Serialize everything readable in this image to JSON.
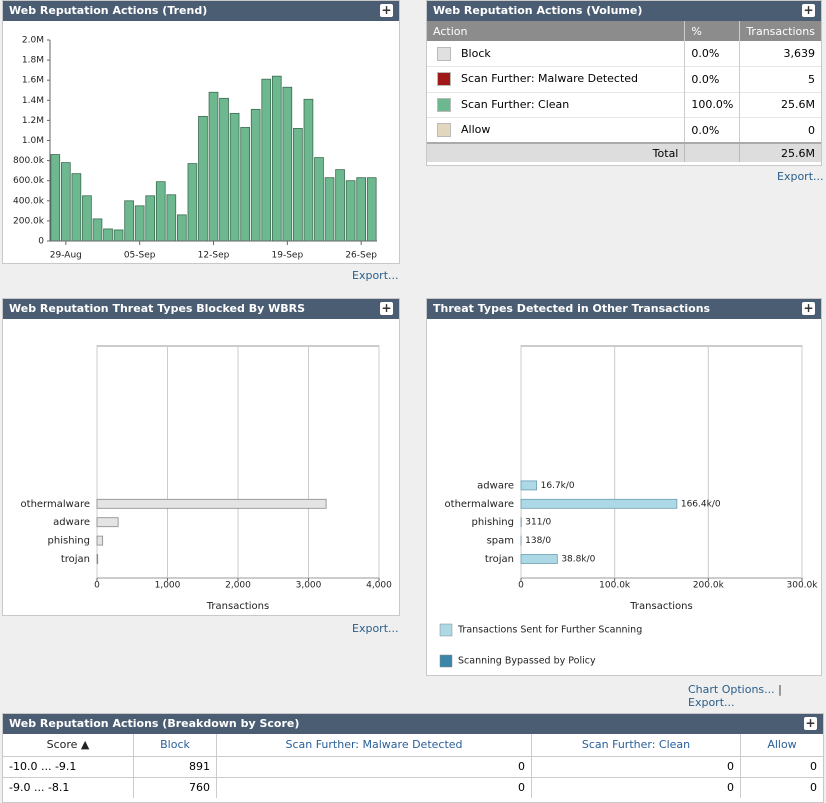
{
  "chart_data": [
    {
      "type": "bar",
      "title": "Web Reputation Actions (Trend)",
      "categories": [
        null,
        "29-Aug",
        null,
        null,
        null,
        null,
        null,
        null,
        "05-Sep",
        null,
        null,
        null,
        null,
        null,
        null,
        "12-Sep",
        null,
        null,
        null,
        null,
        null,
        null,
        "19-Sep",
        null,
        null,
        null,
        null,
        null,
        null,
        "26-Sep",
        null
      ],
      "values": [
        860000,
        780000,
        670000,
        450000,
        220000,
        120000,
        110000,
        400000,
        350000,
        450000,
        590000,
        460000,
        260000,
        770000,
        1240000,
        1480000,
        1420000,
        1270000,
        1130000,
        1310000,
        1610000,
        1640000,
        1530000,
        1120000,
        1410000,
        830000,
        630000,
        710000,
        600000,
        630000,
        630000
      ],
      "color": "#6db88f",
      "ylim": [
        0,
        2000000
      ],
      "yticks": [
        0,
        {
          "value": 200000,
          "label": "200.0k"
        },
        {
          "value": 400000,
          "label": "400.0k"
        },
        {
          "value": 600000,
          "label": "600.0k"
        },
        {
          "value": 800000,
          "label": "800.0k"
        },
        {
          "value": 1000000,
          "label": "1.0M"
        },
        {
          "value": 1200000,
          "label": "1.2M"
        },
        {
          "value": 1400000,
          "label": "1.4M"
        },
        {
          "value": 1600000,
          "label": "1.6M"
        },
        {
          "value": 1800000,
          "label": "1.8M"
        },
        {
          "value": 2000000,
          "label": "2.0M"
        }
      ],
      "grid": false,
      "link": "Export..."
    },
    {
      "type": "hbar",
      "title": "Web Reputation Threat Types Blocked By WBRS",
      "categories": [
        "othermalware",
        "adware",
        "phishing",
        "trojan"
      ],
      "values": [
        3250,
        300,
        80,
        10
      ],
      "color": "#e4e4e4",
      "xlim": [
        0,
        4000
      ],
      "xticks": [
        0,
        {
          "value": 1000,
          "label": "1,000"
        },
        {
          "value": 2000,
          "label": "2,000"
        },
        {
          "value": 3000,
          "label": "3,000"
        },
        {
          "value": 4000,
          "label": "4,000"
        }
      ],
      "xlabel": "Transactions",
      "grid": true,
      "link": "Export..."
    },
    {
      "type": "hbar",
      "title": "Threat Types Detected in Other Transactions",
      "categories": [
        "adware",
        "othermalware",
        "phishing",
        "spam",
        "trojan"
      ],
      "series": [
        {
          "name": "Transactions Sent for Further Scanning",
          "color": "#add8e6",
          "values": [
            16700,
            166400,
            311,
            138,
            38800
          ]
        },
        {
          "name": "Scanning Bypassed by Policy",
          "color": "#3a86a8",
          "values": [
            0,
            0,
            0,
            0,
            0
          ]
        }
      ],
      "value_labels": [
        "16.7k/0",
        "166.4k/0",
        "311/0",
        "138/0",
        "38.8k/0"
      ],
      "xlim": [
        0,
        300000
      ],
      "xticks": [
        0,
        {
          "value": 100000,
          "label": "100.0k"
        },
        {
          "value": 200000,
          "label": "200.0k"
        },
        {
          "value": 300000,
          "label": "300.0k"
        }
      ],
      "xlabel": "Transactions",
      "grid": true,
      "links": [
        "Chart Options...",
        "Export..."
      ],
      "separator": "|"
    }
  ],
  "volume": {
    "title": "Web Reputation Actions (Volume)",
    "headers": [
      "Action",
      "%",
      "Transactions"
    ],
    "rows": [
      {
        "color": "#e0e0e0",
        "cells": [
          "Block",
          "0.0%",
          "3,639"
        ]
      },
      {
        "color": "#a01818",
        "cells": [
          "Scan Further: Malware Detected",
          "0.0%",
          "5"
        ]
      },
      {
        "color": "#6db88f",
        "cells": [
          "Scan Further: Clean",
          "100.0%",
          "25.6M"
        ]
      },
      {
        "color": "#e2d6bf",
        "cells": [
          "Allow",
          "0.0%",
          "0"
        ]
      }
    ],
    "total": [
      "Total",
      "25.6M"
    ],
    "link": "Export..."
  },
  "breakdown": {
    "title": "Web Reputation Actions (Breakdown by Score)",
    "headers": [
      "Score ▲",
      "Block",
      "Scan Further: Malware Detected",
      "Scan Further: Clean",
      "Allow"
    ],
    "rows": [
      [
        "-10.0 ... -9.1",
        "891",
        "0",
        "0",
        "0"
      ],
      [
        "-9.0 ... -8.1",
        "760",
        "0",
        "0",
        "0"
      ]
    ]
  }
}
